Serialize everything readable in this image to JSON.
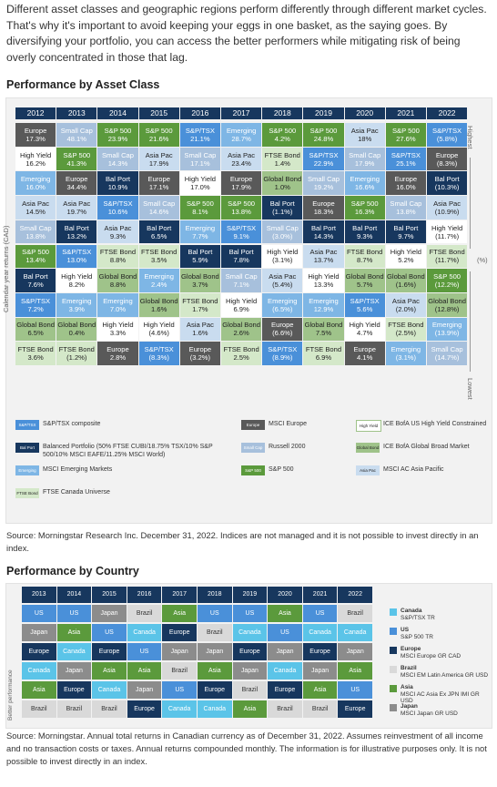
{
  "intro": "Different asset classes and geographic regions perform differently through different market cycles. That's why it's important to avoid keeping your eggs in one basket, as the saying goes. By diversifying your portfolio, you can access the better performers while mitigating risk of being overly concentrated in those that lag.",
  "asset_heading": "Performance by Asset Class",
  "axis_ylabel": "Calendar year returns (CAD)",
  "highest": "Highest",
  "lowest": "Lowest",
  "pct": "(%)",
  "colors": {
    "S&P/TSX": "#4a90d9",
    "Balanced": "#17375e",
    "Emerging": "#7eb6e5",
    "FTSE Bond": "#d4e8c9",
    "Europe": "#595959",
    "Small Cap": "#a7c0dc",
    "S&P 500": "#5b9a3c",
    "High Yield": "#ffffff",
    "Global Bond": "#9fc38a",
    "Asia Pac": "#c9dcef"
  },
  "chart_data": [
    {
      "type": "table",
      "title": "Performance by Asset Class",
      "columns": [
        "2012",
        "2013",
        "2014",
        "2015",
        "2016",
        "2017",
        "2018",
        "2019",
        "2020",
        "2021",
        "2022"
      ],
      "rows": [
        [
          [
            "Europe",
            "17.3%"
          ],
          [
            "Small Cap",
            "48.1%"
          ],
          [
            "S&P 500",
            "23.9%"
          ],
          [
            "S&P 500",
            "21.6%"
          ],
          [
            "S&P/TSX",
            "21.1%"
          ],
          [
            "Emerging",
            "28.7%"
          ],
          [
            "S&P 500",
            "4.2%"
          ],
          [
            "S&P 500",
            "24.8%"
          ],
          [
            "Asia Pac",
            "18%"
          ],
          [
            "S&P 500",
            "27.6%"
          ],
          [
            "S&P/TSX",
            "(5.8%)"
          ]
        ],
        [
          [
            "High Yield",
            "16.2%"
          ],
          [
            "S&P 500",
            "41.3%"
          ],
          [
            "Small Cap",
            "14.3%"
          ],
          [
            "Asia Pac",
            "17.9%"
          ],
          [
            "Small Cap",
            "17.1%"
          ],
          [
            "Asia Pac",
            "23.4%"
          ],
          [
            "FTSE Bond",
            "1.4%"
          ],
          [
            "S&P/TSX",
            "22.9%"
          ],
          [
            "Small Cap",
            "17.9%"
          ],
          [
            "S&P/TSX",
            "25.1%"
          ],
          [
            "Europe",
            "(8.3%)"
          ]
        ],
        [
          [
            "Emerging",
            "16.0%"
          ],
          [
            "Europe",
            "34.4%"
          ],
          [
            "Bal Port",
            "10.9%"
          ],
          [
            "Europe",
            "17.1%"
          ],
          [
            "High Yield",
            "17.0%"
          ],
          [
            "Europe",
            "17.9%"
          ],
          [
            "Global Bond",
            "1.0%"
          ],
          [
            "Small Cap",
            "19.2%"
          ],
          [
            "Emerging",
            "16.6%"
          ],
          [
            "Europe",
            "16.0%"
          ],
          [
            "Bal Port",
            "(10.3%)"
          ]
        ],
        [
          [
            "Asia Pac",
            "14.5%"
          ],
          [
            "Asia Pac",
            "19.7%"
          ],
          [
            "S&P/TSX",
            "10.6%"
          ],
          [
            "Small Cap",
            "14.6%"
          ],
          [
            "S&P 500",
            "8.1%"
          ],
          [
            "S&P 500",
            "13.8%"
          ],
          [
            "Bal Port",
            "(1.1%)"
          ],
          [
            "Europe",
            "18.3%"
          ],
          [
            "S&P 500",
            "16.3%"
          ],
          [
            "Small Cap",
            "13.8%"
          ],
          [
            "Asia Pac",
            "(10.9%)"
          ]
        ],
        [
          [
            "Small Cap",
            "13.8%"
          ],
          [
            "Bal Port",
            "13.2%"
          ],
          [
            "Asia Pac",
            "9.3%"
          ],
          [
            "Bal Port",
            "6.5%"
          ],
          [
            "Emerging",
            "7.7%"
          ],
          [
            "S&P/TSX",
            "9.1%"
          ],
          [
            "Small Cap",
            "(3.0%)"
          ],
          [
            "Bal Port",
            "14.3%"
          ],
          [
            "Bal Port",
            "9.3%"
          ],
          [
            "Bal Port",
            "9.7%"
          ],
          [
            "High Yield",
            "(11.7%)"
          ]
        ],
        [
          [
            "S&P 500",
            "13.4%"
          ],
          [
            "S&P/TSX",
            "13.0%"
          ],
          [
            "FTSE Bond",
            "8.8%"
          ],
          [
            "FTSE Bond",
            "3.5%"
          ],
          [
            "Bal Port",
            "5.9%"
          ],
          [
            "Bal Port",
            "7.8%"
          ],
          [
            "High Yield",
            "(3.1%)"
          ],
          [
            "Asia Pac",
            "13.7%"
          ],
          [
            "FTSE Bond",
            "8.7%"
          ],
          [
            "High Yield",
            "5.2%"
          ],
          [
            "FTSE Bond",
            "(11.7%)"
          ]
        ],
        [
          [
            "Bal Port",
            "7.6%"
          ],
          [
            "High Yield",
            "8.2%"
          ],
          [
            "Global Bond",
            "8.8%"
          ],
          [
            "Emerging",
            "2.4%"
          ],
          [
            "Global Bond",
            "3.7%"
          ],
          [
            "Small Cap",
            "7.1%"
          ],
          [
            "Asia Pac",
            "(5.4%)"
          ],
          [
            "High Yield",
            "13.3%"
          ],
          [
            "Global Bond",
            "5.7%"
          ],
          [
            "Global Bond",
            "(1.6%)"
          ],
          [
            "S&P 500",
            "(12.2%)"
          ]
        ],
        [
          [
            "S&P/TSX",
            "7.2%"
          ],
          [
            "Emerging",
            "3.9%"
          ],
          [
            "Emerging",
            "7.0%"
          ],
          [
            "Global Bond",
            "1.6%"
          ],
          [
            "FTSE Bond",
            "1.7%"
          ],
          [
            "High Yield",
            "6.9%"
          ],
          [
            "Emerging",
            "(6.5%)"
          ],
          [
            "Emerging",
            "12.9%"
          ],
          [
            "S&P/TSX",
            "5.6%"
          ],
          [
            "Asia Pac",
            "(2.0%)"
          ],
          [
            "Global Bond",
            "(12.8%)"
          ]
        ],
        [
          [
            "Global Bond",
            "6.5%"
          ],
          [
            "Global Bond",
            "0.4%"
          ],
          [
            "High Yield",
            "3.3%"
          ],
          [
            "High Yield",
            "(4.6%)"
          ],
          [
            "Asia Pac",
            "1.6%"
          ],
          [
            "Global Bond",
            "2.6%"
          ],
          [
            "Europe",
            "(6.6%)"
          ],
          [
            "Global Bond",
            "7.5%"
          ],
          [
            "High Yield",
            "4.7%"
          ],
          [
            "FTSE Bond",
            "(2.5%)"
          ],
          [
            "Emerging",
            "(13.9%)"
          ]
        ],
        [
          [
            "FTSE Bond",
            "3.6%"
          ],
          [
            "FTSE Bond",
            "(1.2%)"
          ],
          [
            "Europe",
            "2.8%"
          ],
          [
            "S&P/TSX",
            "(8.3%)"
          ],
          [
            "Europe",
            "(3.2%)"
          ],
          [
            "FTSE Bond",
            "2.5%"
          ],
          [
            "S&P/TSX",
            "(8.9%)"
          ],
          [
            "FTSE Bond",
            "6.9%"
          ],
          [
            "Europe",
            "4.1%"
          ],
          [
            "Emerging",
            "(3.1%)"
          ],
          [
            "Small Cap",
            "(14.7%)"
          ]
        ]
      ],
      "legend": [
        {
          "key": "S&P/TSX",
          "swatch": "S&P/TSX",
          "label": "S&P/TSX composite"
        },
        {
          "key": "Europe",
          "swatch": "Europe",
          "label": "MSCI Europe"
        },
        {
          "key": "High Yield",
          "swatch": "High Yield",
          "label": "ICE BofA US High Yield Constrained"
        },
        {
          "key": "Balanced",
          "swatch": "Bal Port",
          "label": "Balanced Portfolio (50% FTSE CUBI/18.75% TSX/10% S&P 500/10% MSCI EAFE/11.25% MSCI World)"
        },
        {
          "key": "Small Cap",
          "swatch": "Small Cap",
          "label": "Russell 2000"
        },
        {
          "key": "Global Bond",
          "swatch": "Global Bond",
          "label": "ICE BofA Global Broad Market"
        },
        {
          "key": "Emerging",
          "swatch": "Emerging",
          "label": "MSCI Emerging Markets"
        },
        {
          "key": "S&P 500",
          "swatch": "S&P 500",
          "label": "S&P 500"
        },
        {
          "key": "Asia Pac",
          "swatch": "Asia Pac",
          "label": "MSCI AC Asia Pacific"
        },
        {
          "key": "FTSE Bond",
          "swatch": "FTSE Bond",
          "label": "FTSE Canada Universe"
        }
      ]
    },
    {
      "type": "table",
      "title": "Performance by Country",
      "ylabel": "Better performance",
      "columns": [
        "2013",
        "2014",
        "2015",
        "2016",
        "2017",
        "2018",
        "2019",
        "2020",
        "2021",
        "2022"
      ],
      "rows": [
        [
          "US",
          "US",
          "Japan",
          "Brazil",
          "Asia",
          "US",
          "US",
          "Asia",
          "US",
          "Brazil"
        ],
        [
          "Japan",
          "Asia",
          "US",
          "Canada",
          "Europe",
          "Brazil",
          "Canada",
          "US",
          "Canada",
          "Canada"
        ],
        [
          "Europe",
          "Canada",
          "Europe",
          "US",
          "Japan",
          "Japan",
          "Europe",
          "Japan",
          "Europe",
          "Japan"
        ],
        [
          "Canada",
          "Japan",
          "Asia",
          "Asia",
          "Brazil",
          "Asia",
          "Japan",
          "Canada",
          "Japan",
          "Asia"
        ],
        [
          "Asia",
          "Europe",
          "Canada",
          "Japan",
          "US",
          "Europe",
          "Brazil",
          "Europe",
          "Asia",
          "US"
        ],
        [
          "Brazil",
          "Brazil",
          "Brazil",
          "Europe",
          "Canada",
          "Canada",
          "Asia",
          "Brazil",
          "Brazil",
          "Europe"
        ]
      ],
      "legend": [
        {
          "key": "Canada",
          "name": "Canada",
          "index": "S&P/TSX TR"
        },
        {
          "key": "US",
          "name": "US",
          "index": "S&P 500 TR"
        },
        {
          "key": "Europe",
          "name": "Europe",
          "index": "MSCI Europe GR CAD"
        },
        {
          "key": "Brazil",
          "name": "Brazil",
          "index": "MSCI EM Latin America GR USD"
        },
        {
          "key": "Asia",
          "name": "Asia",
          "index": "MSCI AC Asia Ex JPN IMI GR USD"
        },
        {
          "key": "Japan",
          "name": "Japan",
          "index": "MSCI Japan GR USD"
        }
      ]
    }
  ],
  "country_colors": {
    "US": "#4a90d9",
    "Canada": "#5bc4e8",
    "Japan": "#8c8c8c",
    "Europe": "#17375e",
    "Asia": "#5b9a3c",
    "Brazil": "#d9d9d9"
  },
  "source1": "Source: Morningstar Research Inc. December 31, 2022. Indices are not managed and it is not possible to invest directly in an index.",
  "country_heading": "Performance by Country",
  "source2": "Source: Morningstar. Annual total returns in Canadian currency as of December 31, 2022. Assumes reinvestment of all income and no transaction costs or taxes. Annual returns compounded monthly. The information is for illustrative purposes only. It is not possible to invest directly in an index."
}
